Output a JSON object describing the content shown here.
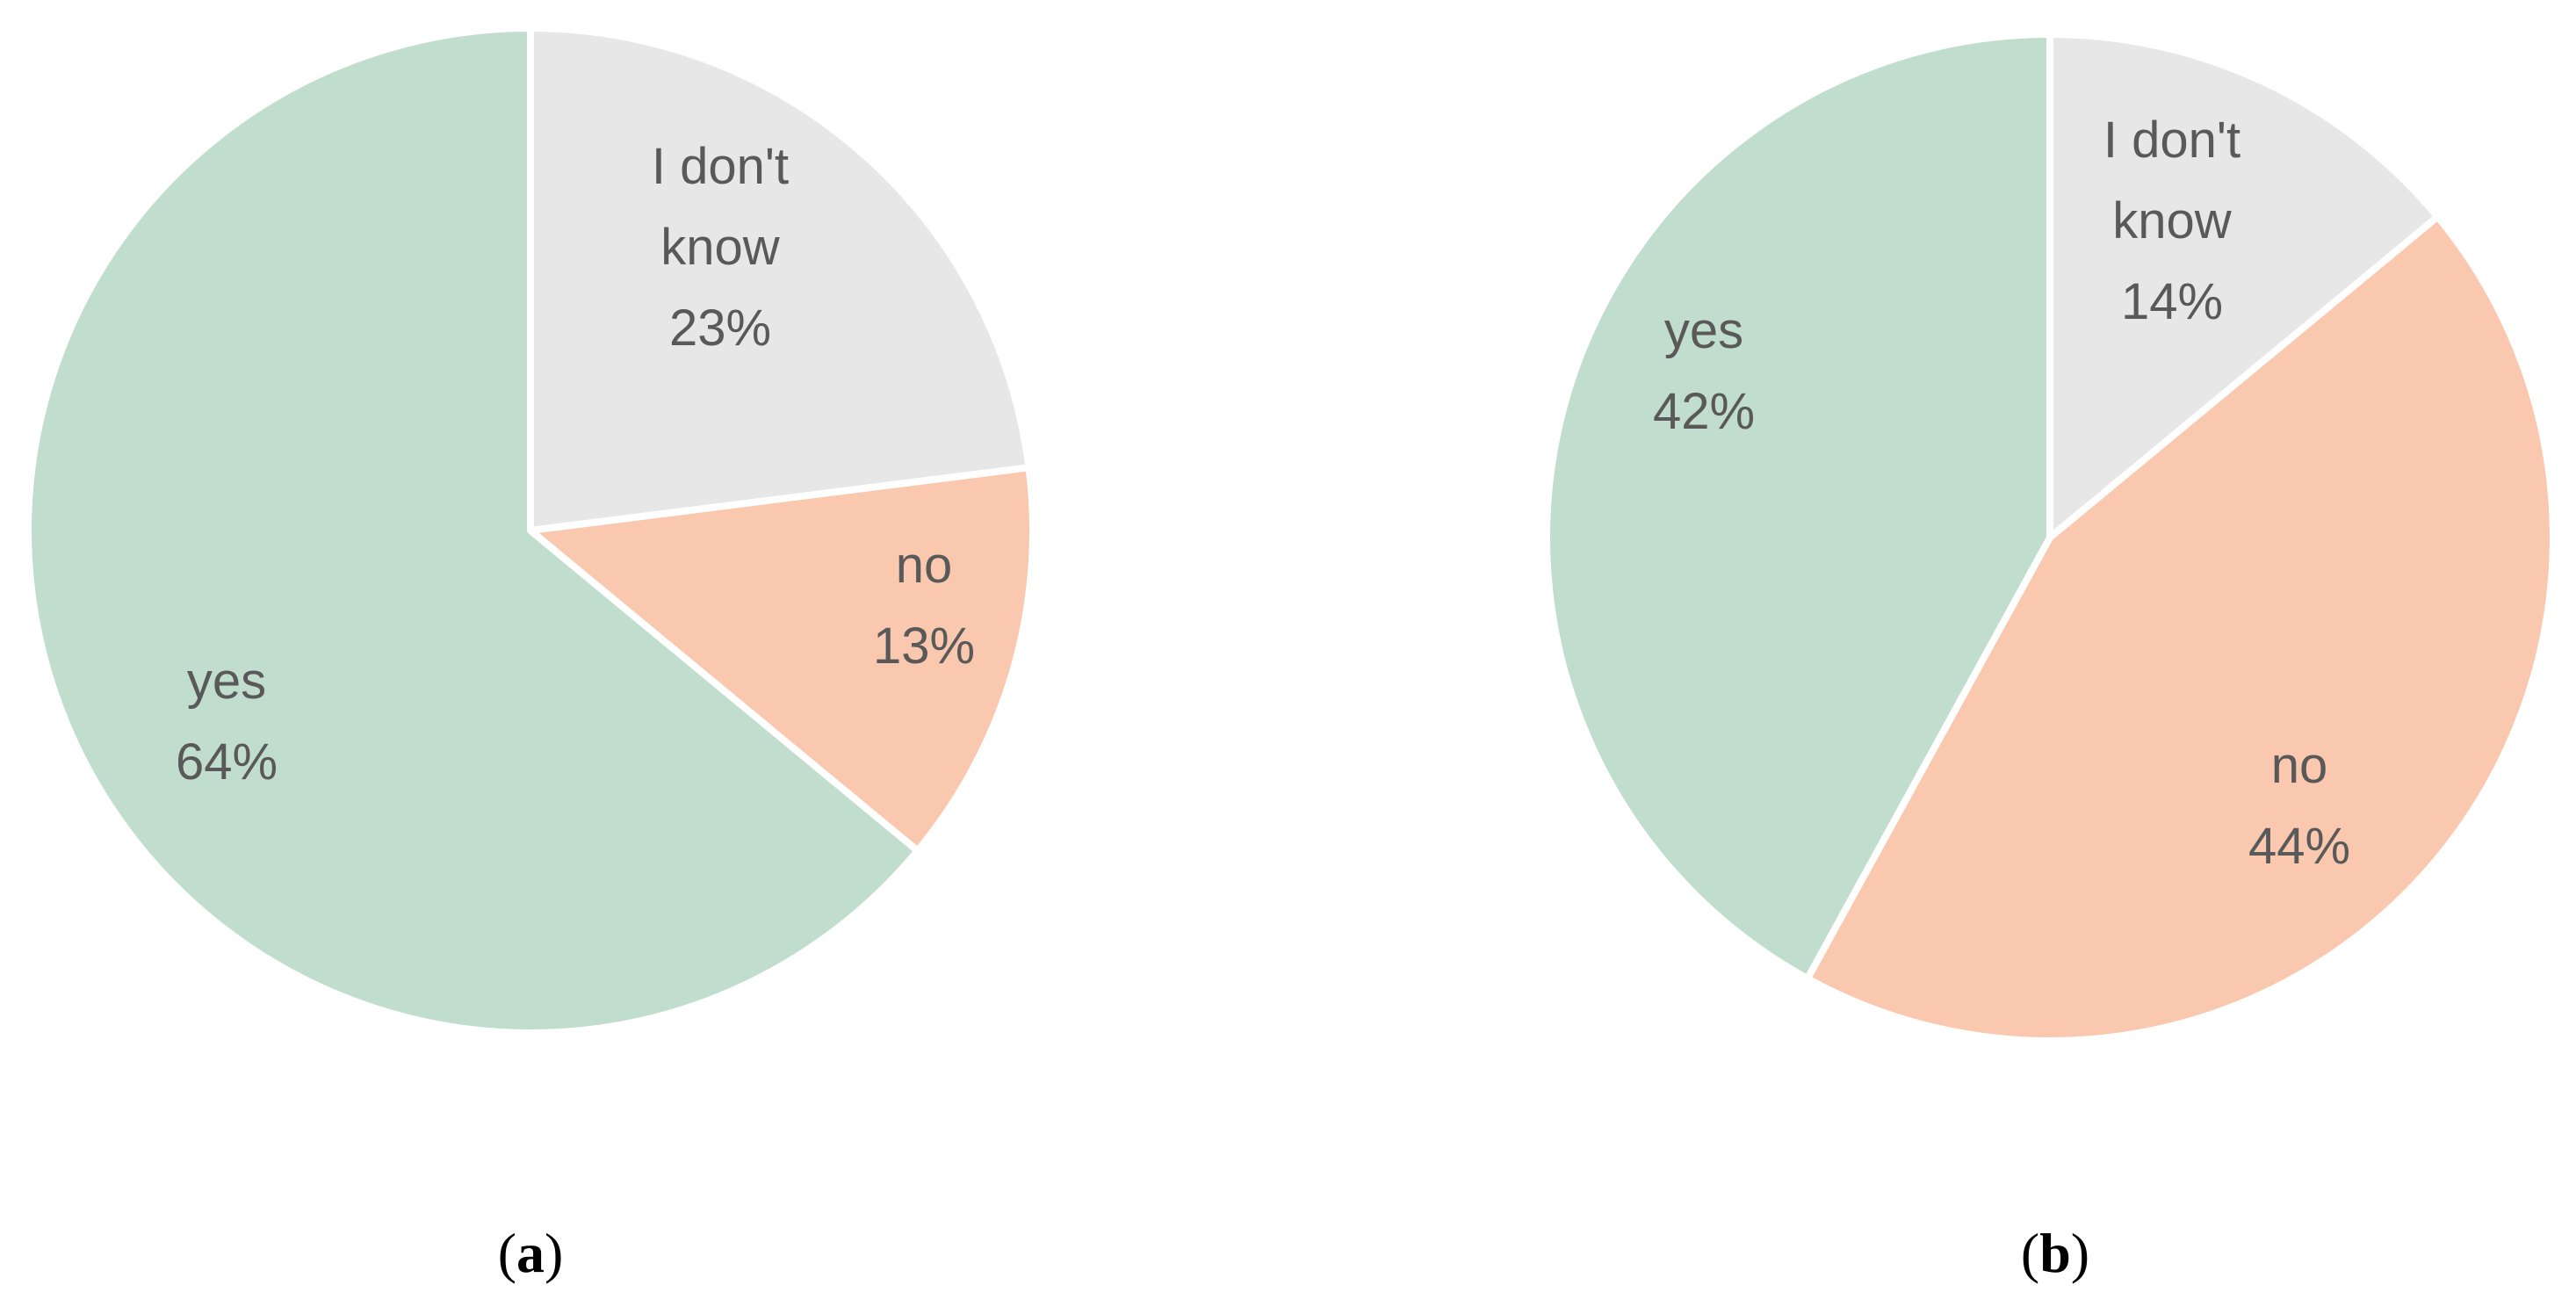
{
  "colors": {
    "yes": "#c1ddcd",
    "no": "#fac8ae",
    "dont_know": "#e7e7e7",
    "label_text": "#595959",
    "separator": "#ffffff"
  },
  "chart_data": [
    {
      "type": "pie",
      "panel": "a",
      "start_angle_deg": 0,
      "direction": "clockwise",
      "slices": [
        {
          "key": "dont_know",
          "label_lines": [
            "I don't",
            "know"
          ],
          "value": 23,
          "value_text": "23%"
        },
        {
          "key": "no",
          "label_lines": [
            "no"
          ],
          "value": 13,
          "value_text": "13%"
        },
        {
          "key": "yes",
          "label_lines": [
            "yes"
          ],
          "value": 64,
          "value_text": "64%"
        }
      ]
    },
    {
      "type": "pie",
      "panel": "b",
      "start_angle_deg": 0,
      "direction": "clockwise",
      "slices": [
        {
          "key": "dont_know",
          "label_lines": [
            "I don't",
            "know"
          ],
          "value": 14,
          "value_text": "14%"
        },
        {
          "key": "no",
          "label_lines": [
            "no"
          ],
          "value": 44,
          "value_text": "44%"
        },
        {
          "key": "yes",
          "label_lines": [
            "yes"
          ],
          "value": 42,
          "value_text": "42%"
        }
      ]
    }
  ]
}
